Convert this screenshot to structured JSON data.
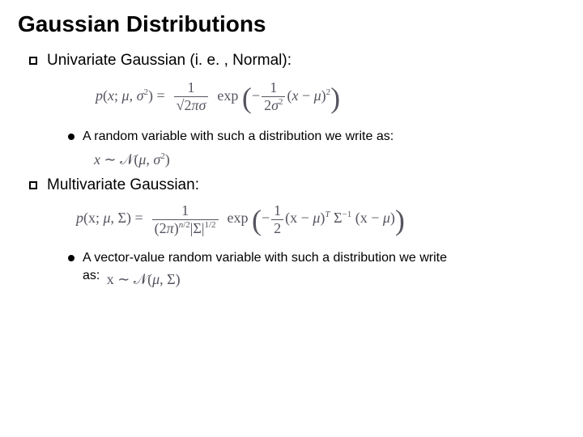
{
  "title": "Gaussian Distributions",
  "items": [
    {
      "heading": "Univariate Gaussian (i. e. , Normal):",
      "formula_id": "univariate_pdf",
      "sub": {
        "text": "A random variable with such a distribution we write as:",
        "inline_formula_id": "univariate_rv"
      }
    },
    {
      "heading": "Multivariate Gaussian:",
      "formula_id": "multivariate_pdf",
      "sub": {
        "text": "A vector-value random variable with such a distribution we write",
        "text2": "as:",
        "inline_formula_id": "multivariate_rv"
      }
    }
  ],
  "formulas": {
    "univariate_pdf": {
      "lhs": "p(x; μ, σ²) =",
      "frac1_num": "1",
      "frac1_den_pre": "√",
      "frac1_den_under": "2π",
      "frac1_den_post": "σ",
      "mid": " exp",
      "frac2_num": "1",
      "frac2_den": "2σ²",
      "tail": "(x − μ)²"
    },
    "univariate_rv": "x ∼ 𝒩(μ, σ²)",
    "multivariate_pdf": {
      "lhs": "p(x; μ, Σ) =",
      "frac1_num": "1",
      "frac1_den": "(2π)ⁿ⁄²|Σ|¹⁄²",
      "mid": " exp",
      "inner": "(x − μ)ᵀ Σ⁻¹ (x − μ)"
    },
    "multivariate_rv": "x ∼ 𝒩(μ, Σ)"
  },
  "style": {
    "title_fontsize": 28,
    "body_fontsize": 19,
    "sub_fontsize": 16,
    "formula_color": "#555560",
    "text_color": "#000000",
    "background": "#ffffff",
    "font_family_body": "Arial",
    "font_family_formula": "Times New Roman"
  }
}
